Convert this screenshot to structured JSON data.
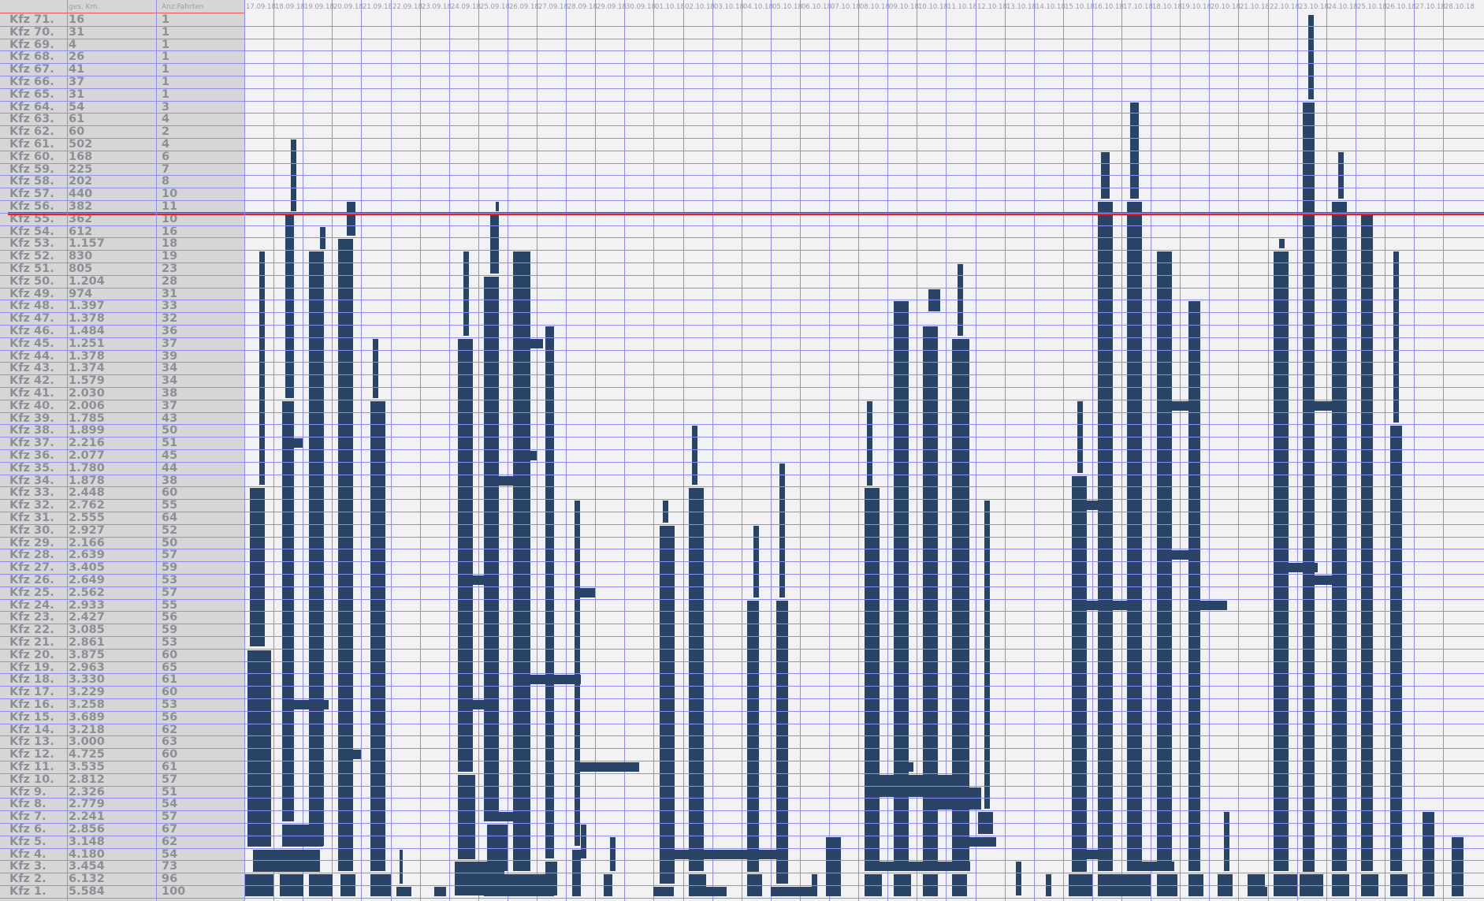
{
  "table": {
    "headers": {
      "kfz": "",
      "km": "ges. Km.",
      "trips": "Anz.Fahrten"
    },
    "rows": [
      {
        "kfz": "Kfz 71.",
        "km": "16",
        "trips": "1"
      },
      {
        "kfz": "Kfz 70.",
        "km": "31",
        "trips": "1"
      },
      {
        "kfz": "Kfz 69.",
        "km": "4",
        "trips": "1"
      },
      {
        "kfz": "Kfz 68.",
        "km": "26",
        "trips": "1"
      },
      {
        "kfz": "Kfz 67.",
        "km": "41",
        "trips": "1"
      },
      {
        "kfz": "Kfz 66.",
        "km": "37",
        "trips": "1"
      },
      {
        "kfz": "Kfz 65.",
        "km": "31",
        "trips": "1"
      },
      {
        "kfz": "Kfz 64.",
        "km": "54",
        "trips": "3"
      },
      {
        "kfz": "Kfz 63.",
        "km": "61",
        "trips": "4"
      },
      {
        "kfz": "Kfz 62.",
        "km": "60",
        "trips": "2"
      },
      {
        "kfz": "Kfz 61.",
        "km": "502",
        "trips": "4"
      },
      {
        "kfz": "Kfz 60.",
        "km": "168",
        "trips": "6"
      },
      {
        "kfz": "Kfz 59.",
        "km": "225",
        "trips": "7"
      },
      {
        "kfz": "Kfz 58.",
        "km": "202",
        "trips": "8"
      },
      {
        "kfz": "Kfz 57.",
        "km": "440",
        "trips": "10"
      },
      {
        "kfz": "Kfz 56.",
        "km": "382",
        "trips": "11"
      },
      {
        "kfz": "Kfz 55.",
        "km": "362",
        "trips": "10"
      },
      {
        "kfz": "Kfz 54.",
        "km": "612",
        "trips": "16"
      },
      {
        "kfz": "Kfz 53.",
        "km": "1.157",
        "trips": "18"
      },
      {
        "kfz": "Kfz 52.",
        "km": "830",
        "trips": "19"
      },
      {
        "kfz": "Kfz 51.",
        "km": "805",
        "trips": "23"
      },
      {
        "kfz": "Kfz 50.",
        "km": "1.204",
        "trips": "28"
      },
      {
        "kfz": "Kfz 49.",
        "km": "974",
        "trips": "31"
      },
      {
        "kfz": "Kfz 48.",
        "km": "1.397",
        "trips": "33"
      },
      {
        "kfz": "Kfz 47.",
        "km": "1.378",
        "trips": "32"
      },
      {
        "kfz": "Kfz 46.",
        "km": "1.484",
        "trips": "36"
      },
      {
        "kfz": "Kfz 45.",
        "km": "1.251",
        "trips": "37"
      },
      {
        "kfz": "Kfz 44.",
        "km": "1.378",
        "trips": "39"
      },
      {
        "kfz": "Kfz 43.",
        "km": "1.374",
        "trips": "34"
      },
      {
        "kfz": "Kfz 42.",
        "km": "1.579",
        "trips": "34"
      },
      {
        "kfz": "Kfz 41.",
        "km": "2.030",
        "trips": "38"
      },
      {
        "kfz": "Kfz 40.",
        "km": "2.006",
        "trips": "37"
      },
      {
        "kfz": "Kfz 39.",
        "km": "1.785",
        "trips": "43"
      },
      {
        "kfz": "Kfz 38.",
        "km": "1.899",
        "trips": "50"
      },
      {
        "kfz": "Kfz 37.",
        "km": "2.216",
        "trips": "51"
      },
      {
        "kfz": "Kfz 36.",
        "km": "2.077",
        "trips": "45"
      },
      {
        "kfz": "Kfz 35.",
        "km": "1.780",
        "trips": "44"
      },
      {
        "kfz": "Kfz 34.",
        "km": "1.878",
        "trips": "38"
      },
      {
        "kfz": "Kfz 33.",
        "km": "2.448",
        "trips": "60"
      },
      {
        "kfz": "Kfz 32.",
        "km": "2.762",
        "trips": "55"
      },
      {
        "kfz": "Kfz 31.",
        "km": "2.555",
        "trips": "64"
      },
      {
        "kfz": "Kfz 30.",
        "km": "2.927",
        "trips": "52"
      },
      {
        "kfz": "Kfz 29.",
        "km": "2.166",
        "trips": "50"
      },
      {
        "kfz": "Kfz 28.",
        "km": "2.639",
        "trips": "57"
      },
      {
        "kfz": "Kfz 27.",
        "km": "3.405",
        "trips": "59"
      },
      {
        "kfz": "Kfz 26.",
        "km": "2.649",
        "trips": "53"
      },
      {
        "kfz": "Kfz 25.",
        "km": "2.562",
        "trips": "57"
      },
      {
        "kfz": "Kfz 24.",
        "km": "2.933",
        "trips": "55"
      },
      {
        "kfz": "Kfz 23.",
        "km": "2.427",
        "trips": "56"
      },
      {
        "kfz": "Kfz 22.",
        "km": "3.085",
        "trips": "59"
      },
      {
        "kfz": "Kfz 21.",
        "km": "2.861",
        "trips": "53"
      },
      {
        "kfz": "Kfz 20.",
        "km": "3.875",
        "trips": "60"
      },
      {
        "kfz": "Kfz 19.",
        "km": "2.963",
        "trips": "65"
      },
      {
        "kfz": "Kfz 18.",
        "km": "3.330",
        "trips": "61"
      },
      {
        "kfz": "Kfz 17.",
        "km": "3.229",
        "trips": "60"
      },
      {
        "kfz": "Kfz 16.",
        "km": "3.258",
        "trips": "53"
      },
      {
        "kfz": "Kfz 15.",
        "km": "3.689",
        "trips": "56"
      },
      {
        "kfz": "Kfz 14.",
        "km": "3.218",
        "trips": "62"
      },
      {
        "kfz": "Kfz 13.",
        "km": "3.000",
        "trips": "63"
      },
      {
        "kfz": "Kfz 12.",
        "km": "4.725",
        "trips": "60"
      },
      {
        "kfz": "Kfz 11.",
        "km": "3.535",
        "trips": "61"
      },
      {
        "kfz": "Kfz 10.",
        "km": "2.812",
        "trips": "57"
      },
      {
        "kfz": "Kfz 9.",
        "km": "2.326",
        "trips": "51"
      },
      {
        "kfz": "Kfz 8.",
        "km": "2.779",
        "trips": "54"
      },
      {
        "kfz": "Kfz 7.",
        "km": "2.241",
        "trips": "57"
      },
      {
        "kfz": "Kfz 6.",
        "km": "2.856",
        "trips": "67"
      },
      {
        "kfz": "Kfz 5.",
        "km": "3.148",
        "trips": "62"
      },
      {
        "kfz": "Kfz 4.",
        "km": "4.180",
        "trips": "54"
      },
      {
        "kfz": "Kfz 3.",
        "km": "3.454",
        "trips": "73"
      },
      {
        "kfz": "Kfz 2.",
        "km": "6.132",
        "trips": "96"
      },
      {
        "kfz": "Kfz 1.",
        "km": "5.584",
        "trips": "100"
      }
    ]
  },
  "colors": {
    "bar": "#2a4468",
    "grid": "#8e8ef0",
    "marker": "#ee1b1b",
    "panel": "#d6d6d6",
    "plot_bg": "#f2f2f5"
  },
  "chart_data": {
    "type": "bar",
    "title": "",
    "xlabel": "",
    "ylabel": "",
    "dates": [
      "17.09.18",
      "18.09.18",
      "19.09.18",
      "20.09.18",
      "21.09.18",
      "22.09.18",
      "23.09.18",
      "24.09.18",
      "25.09.18",
      "26.09.18",
      "27.09.18",
      "28.09.18",
      "29.09.18",
      "30.09.18",
      "01.10.18",
      "02.10.18",
      "03.10.18",
      "04.10.18",
      "05.10.18",
      "06.10.18",
      "07.10.18",
      "08.10.18",
      "09.10.18",
      "10.10.18",
      "11.10.18",
      "12.10.18",
      "13.10.18",
      "14.10.18",
      "15.10.18",
      "16.10.18",
      "17.10.18",
      "18.10.18",
      "19.10.18",
      "20.10.18",
      "21.10.18",
      "22.10.18",
      "23.10.18",
      "24.10.18",
      "25.10.18",
      "26.10.18",
      "27.10.18",
      "28.10.18"
    ],
    "marker_kfz": 56,
    "bars": [
      {
        "day": 0.0,
        "len": 1.0,
        "k1": 1,
        "k2": 2
      },
      {
        "day": 0.3,
        "len": 2.3,
        "k1": 3,
        "k2": 4
      },
      {
        "day": 0.1,
        "len": 0.8,
        "k1": 5,
        "k2": 20
      },
      {
        "day": 0.2,
        "len": 0.5,
        "k1": 21,
        "k2": 33
      },
      {
        "day": 0.5,
        "len": 0.2,
        "k1": 34,
        "k2": 52
      },
      {
        "day": 1.2,
        "len": 0.8,
        "k1": 1,
        "k2": 2
      },
      {
        "day": 1.3,
        "len": 1.4,
        "k1": 5,
        "k2": 6
      },
      {
        "day": 1.3,
        "len": 0.4,
        "k1": 7,
        "k2": 40
      },
      {
        "day": 1.4,
        "len": 0.3,
        "k1": 41,
        "k2": 55
      },
      {
        "day": 1.6,
        "len": 0.2,
        "k1": 56,
        "k2": 61
      },
      {
        "day": 1.3,
        "len": 1.6,
        "k1": 16,
        "k2": 16
      },
      {
        "day": 1.4,
        "len": 0.6,
        "k1": 37,
        "k2": 37
      },
      {
        "day": 2.2,
        "len": 0.8,
        "k1": 1,
        "k2": 2
      },
      {
        "day": 2.2,
        "len": 0.5,
        "k1": 5,
        "k2": 52
      },
      {
        "day": 2.6,
        "len": 0.2,
        "k1": 53,
        "k2": 54
      },
      {
        "day": 3.3,
        "len": 0.5,
        "k1": 1,
        "k2": 2
      },
      {
        "day": 3.2,
        "len": 0.5,
        "k1": 3,
        "k2": 53
      },
      {
        "day": 3.3,
        "len": 0.7,
        "k1": 12,
        "k2": 12
      },
      {
        "day": 3.5,
        "len": 0.3,
        "k1": 54,
        "k2": 56
      },
      {
        "day": 3.5,
        "len": 0.2,
        "k1": 45,
        "k2": 46
      },
      {
        "day": 4.3,
        "len": 0.7,
        "k1": 1,
        "k2": 2
      },
      {
        "day": 4.3,
        "len": 0.5,
        "k1": 3,
        "k2": 40
      },
      {
        "day": 4.4,
        "len": 0.2,
        "k1": 41,
        "k2": 45
      },
      {
        "day": 5.2,
        "len": 0.5,
        "k1": 1,
        "k2": 1
      },
      {
        "day": 5.3,
        "len": 0.1,
        "k1": 2,
        "k2": 4
      },
      {
        "day": 6.5,
        "len": 0.4,
        "k1": 1,
        "k2": 1
      },
      {
        "day": 7.2,
        "len": 1.7,
        "k1": 1,
        "k2": 3
      },
      {
        "day": 7.3,
        "len": 0.6,
        "k1": 4,
        "k2": 10
      },
      {
        "day": 7.3,
        "len": 1.4,
        "k1": 16,
        "k2": 16
      },
      {
        "day": 7.3,
        "len": 0.5,
        "k1": 11,
        "k2": 45
      },
      {
        "day": 7.5,
        "len": 0.2,
        "k1": 46,
        "k2": 52
      },
      {
        "day": 7.5,
        "len": 0.7,
        "k1": 26,
        "k2": 26
      },
      {
        "day": 8.2,
        "len": 1.5,
        "k1": 1,
        "k2": 2
      },
      {
        "day": 8.3,
        "len": 0.7,
        "k1": 3,
        "k2": 6
      },
      {
        "day": 8.2,
        "len": 0.5,
        "k1": 7,
        "k2": 50
      },
      {
        "day": 8.3,
        "len": 1.3,
        "k1": 34,
        "k2": 34
      },
      {
        "day": 8.3,
        "len": 1.4,
        "k1": 7,
        "k2": 7
      },
      {
        "day": 8.4,
        "len": 0.3,
        "k1": 51,
        "k2": 55
      },
      {
        "day": 8.6,
        "len": 0.1,
        "k1": 56,
        "k2": 56
      },
      {
        "day": 9.2,
        "len": 1.4,
        "k1": 1,
        "k2": 2
      },
      {
        "day": 9.2,
        "len": 0.6,
        "k1": 3,
        "k2": 52
      },
      {
        "day": 9.3,
        "len": 2.2,
        "k1": 18,
        "k2": 18
      },
      {
        "day": 9.4,
        "len": 0.6,
        "k1": 36,
        "k2": 36
      },
      {
        "day": 9.4,
        "len": 0.8,
        "k1": 45,
        "k2": 45
      },
      {
        "day": 10.3,
        "len": 0.4,
        "k1": 1,
        "k2": 3
      },
      {
        "day": 10.3,
        "len": 0.3,
        "k1": 4,
        "k2": 46
      },
      {
        "day": 10.4,
        "len": 0.2,
        "k1": 40,
        "k2": 44
      },
      {
        "day": 11.2,
        "len": 0.3,
        "k1": 1,
        "k2": 4
      },
      {
        "day": 11.3,
        "len": 0.2,
        "k1": 5,
        "k2": 32
      },
      {
        "day": 11.4,
        "len": 0.6,
        "k1": 25,
        "k2": 25
      },
      {
        "day": 11.4,
        "len": 2.1,
        "k1": 11,
        "k2": 11
      },
      {
        "day": 11.5,
        "len": 0.2,
        "k1": 4,
        "k2": 6
      },
      {
        "day": 12.3,
        "len": 0.3,
        "k1": 1,
        "k2": 2
      },
      {
        "day": 12.5,
        "len": 0.2,
        "k1": 3,
        "k2": 5
      },
      {
        "day": 14.0,
        "len": 0.7,
        "k1": 1,
        "k2": 1
      },
      {
        "day": 14.2,
        "len": 0.5,
        "k1": 2,
        "k2": 30
      },
      {
        "day": 14.3,
        "len": 0.2,
        "k1": 31,
        "k2": 32
      },
      {
        "day": 14.3,
        "len": 4.0,
        "k1": 4,
        "k2": 4
      },
      {
        "day": 15.2,
        "len": 0.6,
        "k1": 1,
        "k2": 2
      },
      {
        "day": 15.2,
        "len": 0.5,
        "k1": 3,
        "k2": 33
      },
      {
        "day": 15.3,
        "len": 0.2,
        "k1": 34,
        "k2": 38
      },
      {
        "day": 15.8,
        "len": 0.4,
        "k1": 1,
        "k2": 1
      },
      {
        "day": 16.2,
        "len": 0.3,
        "k1": 1,
        "k2": 1
      },
      {
        "day": 17.2,
        "len": 0.5,
        "k1": 1,
        "k2": 2
      },
      {
        "day": 17.2,
        "len": 0.4,
        "k1": 3,
        "k2": 24
      },
      {
        "day": 17.4,
        "len": 0.2,
        "k1": 25,
        "k2": 30
      },
      {
        "day": 18.2,
        "len": 0.4,
        "k1": 2,
        "k2": 24
      },
      {
        "day": 18.3,
        "len": 0.2,
        "k1": 25,
        "k2": 35
      },
      {
        "day": 18.0,
        "len": 1.6,
        "k1": 1,
        "k2": 1
      },
      {
        "day": 19.4,
        "len": 0.2,
        "k1": 1,
        "k2": 2
      },
      {
        "day": 19.9,
        "len": 0.5,
        "k1": 1,
        "k2": 5
      },
      {
        "day": 20.2,
        "len": 0.2,
        "k1": 1,
        "k2": 3
      },
      {
        "day": 21.2,
        "len": 0.6,
        "k1": 1,
        "k2": 2
      },
      {
        "day": 21.2,
        "len": 0.5,
        "k1": 3,
        "k2": 33
      },
      {
        "day": 21.3,
        "len": 0.2,
        "k1": 34,
        "k2": 40
      },
      {
        "day": 21.2,
        "len": 3.6,
        "k1": 3,
        "k2": 3
      },
      {
        "day": 21.3,
        "len": 3.5,
        "k1": 9,
        "k2": 10
      },
      {
        "day": 22.2,
        "len": 0.6,
        "k1": 1,
        "k2": 2
      },
      {
        "day": 22.2,
        "len": 0.5,
        "k1": 3,
        "k2": 48
      },
      {
        "day": 22.3,
        "len": 0.6,
        "k1": 11,
        "k2": 11
      },
      {
        "day": 23.2,
        "len": 0.5,
        "k1": 1,
        "k2": 2
      },
      {
        "day": 23.2,
        "len": 0.5,
        "k1": 3,
        "k2": 46
      },
      {
        "day": 23.4,
        "len": 0.4,
        "k1": 48,
        "k2": 49
      },
      {
        "day": 23.4,
        "len": 1.8,
        "k1": 8,
        "k2": 9
      },
      {
        "day": 24.2,
        "len": 0.5,
        "k1": 1,
        "k2": 2
      },
      {
        "day": 24.2,
        "len": 0.6,
        "k1": 3,
        "k2": 45
      },
      {
        "day": 24.4,
        "len": 0.2,
        "k1": 46,
        "k2": 51
      },
      {
        "day": 24.3,
        "len": 1.4,
        "k1": 5,
        "k2": 5
      },
      {
        "day": 25.1,
        "len": 0.5,
        "k1": 6,
        "k2": 7
      },
      {
        "day": 25.3,
        "len": 0.2,
        "k1": 8,
        "k2": 32
      },
      {
        "day": 26.4,
        "len": 0.2,
        "k1": 1,
        "k2": 3
      },
      {
        "day": 27.4,
        "len": 0.2,
        "k1": 1,
        "k2": 2
      },
      {
        "day": 28.2,
        "len": 0.8,
        "k1": 1,
        "k2": 2
      },
      {
        "day": 28.3,
        "len": 0.5,
        "k1": 3,
        "k2": 34
      },
      {
        "day": 28.4,
        "len": 1.3,
        "k1": 4,
        "k2": 4
      },
      {
        "day": 28.3,
        "len": 2.3,
        "k1": 24,
        "k2": 24
      },
      {
        "day": 28.3,
        "len": 1.3,
        "k1": 32,
        "k2": 32
      },
      {
        "day": 28.5,
        "len": 0.2,
        "k1": 35,
        "k2": 40
      },
      {
        "day": 29.2,
        "len": 1.0,
        "k1": 1,
        "k2": 2
      },
      {
        "day": 29.2,
        "len": 0.5,
        "k1": 3,
        "k2": 56
      },
      {
        "day": 29.3,
        "len": 0.3,
        "k1": 57,
        "k2": 60
      },
      {
        "day": 30.2,
        "len": 0.8,
        "k1": 1,
        "k2": 2
      },
      {
        "day": 30.2,
        "len": 0.5,
        "k1": 3,
        "k2": 56
      },
      {
        "day": 30.3,
        "len": 0.3,
        "k1": 57,
        "k2": 64
      },
      {
        "day": 30.3,
        "len": 1.5,
        "k1": 3,
        "k2": 3
      },
      {
        "day": 31.2,
        "len": 0.7,
        "k1": 1,
        "k2": 2
      },
      {
        "day": 31.2,
        "len": 0.5,
        "k1": 3,
        "k2": 52
      },
      {
        "day": 31.3,
        "len": 1.3,
        "k1": 40,
        "k2": 40
      },
      {
        "day": 31.3,
        "len": 1.2,
        "k1": 28,
        "k2": 28
      },
      {
        "day": 32.3,
        "len": 0.5,
        "k1": 1,
        "k2": 2
      },
      {
        "day": 32.3,
        "len": 0.4,
        "k1": 3,
        "k2": 48
      },
      {
        "day": 32.4,
        "len": 1.2,
        "k1": 24,
        "k2": 24
      },
      {
        "day": 33.3,
        "len": 0.5,
        "k1": 1,
        "k2": 2
      },
      {
        "day": 33.5,
        "len": 0.2,
        "k1": 3,
        "k2": 7
      },
      {
        "day": 34.3,
        "len": 0.6,
        "k1": 1,
        "k2": 2
      },
      {
        "day": 34.7,
        "len": 0.3,
        "k1": 1,
        "k2": 1
      },
      {
        "day": 35.2,
        "len": 0.8,
        "k1": 1,
        "k2": 2
      },
      {
        "day": 35.2,
        "len": 0.5,
        "k1": 3,
        "k2": 52
      },
      {
        "day": 35.3,
        "len": 1.4,
        "k1": 27,
        "k2": 27
      },
      {
        "day": 35.4,
        "len": 0.2,
        "k1": 53,
        "k2": 53
      },
      {
        "day": 36.1,
        "len": 0.8,
        "k1": 1,
        "k2": 2
      },
      {
        "day": 36.2,
        "len": 0.4,
        "k1": 3,
        "k2": 64
      },
      {
        "day": 36.3,
        "len": 1.4,
        "k1": 26,
        "k2": 26
      },
      {
        "day": 36.2,
        "len": 1.5,
        "k1": 40,
        "k2": 40
      },
      {
        "day": 36.4,
        "len": 0.2,
        "k1": 65,
        "k2": 71
      },
      {
        "day": 37.2,
        "len": 0.6,
        "k1": 1,
        "k2": 2
      },
      {
        "day": 37.2,
        "len": 0.5,
        "k1": 3,
        "k2": 56
      },
      {
        "day": 37.4,
        "len": 0.2,
        "k1": 57,
        "k2": 60
      },
      {
        "day": 38.2,
        "len": 0.6,
        "k1": 1,
        "k2": 2
      },
      {
        "day": 38.2,
        "len": 0.4,
        "k1": 3,
        "k2": 55
      },
      {
        "day": 39.2,
        "len": 0.6,
        "k1": 1,
        "k2": 2
      },
      {
        "day": 39.2,
        "len": 0.4,
        "k1": 3,
        "k2": 38
      },
      {
        "day": 39.3,
        "len": 0.2,
        "k1": 39,
        "k2": 52
      },
      {
        "day": 40.3,
        "len": 0.4,
        "k1": 1,
        "k2": 7
      },
      {
        "day": 41.3,
        "len": 0.4,
        "k1": 1,
        "k2": 5
      }
    ]
  }
}
